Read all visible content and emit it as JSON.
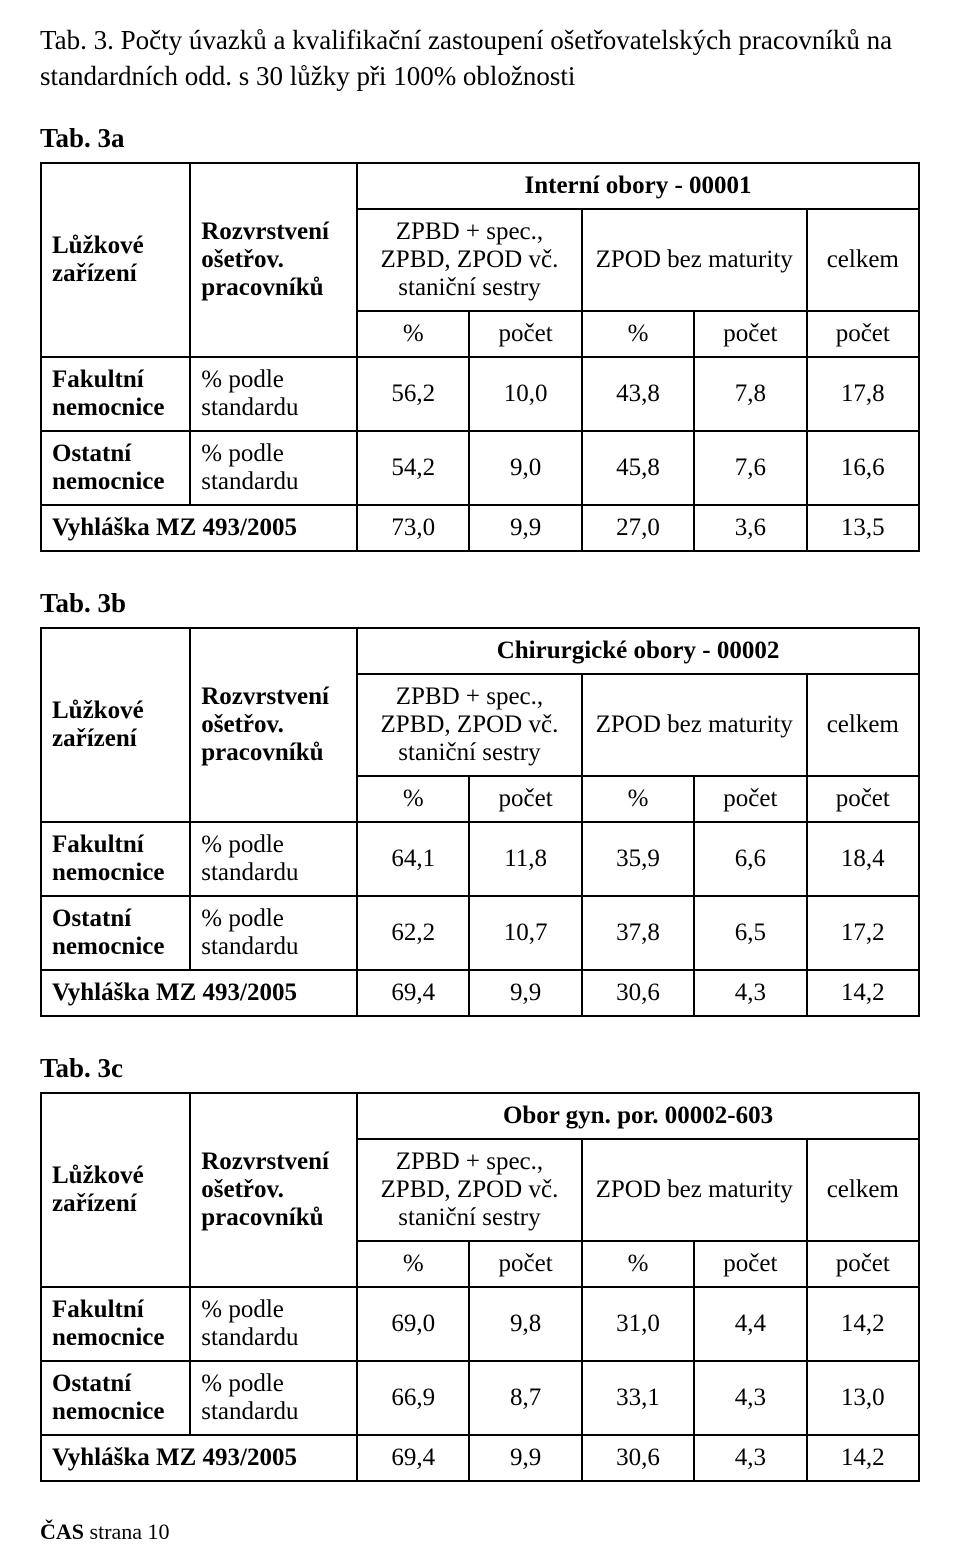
{
  "title": "Tab. 3. Počty úvazků a kvalifikační zastoupení ošetřovatelských pracovníků na standardních odd. s 30 lůžky při 100% obložnosti",
  "footer_bold": "ČAS",
  "footer_rest": " strana 10",
  "common": {
    "luz": "Lůžkové zařízení",
    "rozv": "Rozvrstvení ošetřov. pracovníků",
    "zpbd": "ZPBD + spec., ZPBD, ZPOD vč. staniční sestry",
    "zpod": "ZPOD bez maturity",
    "celkem": "celkem",
    "pct": "%",
    "pocet": "počet",
    "fak": "Fakultní nemocnice",
    "ost": "Ostatní nemocnice",
    "podle": "% podle standardu",
    "vyhl": "Vyhláška MZ 493/2005"
  },
  "tables": [
    {
      "label": "Tab. 3a",
      "obor": "Interní obory - 00001",
      "rows": {
        "fak": [
          "56,2",
          "10,0",
          "43,8",
          "7,8",
          "17,8"
        ],
        "ost": [
          "54,2",
          "9,0",
          "45,8",
          "7,6",
          "16,6"
        ],
        "vyhl": [
          "73,0",
          "9,9",
          "27,0",
          "3,6",
          "13,5"
        ]
      }
    },
    {
      "label": "Tab. 3b",
      "obor": "Chirurgické obory - 00002",
      "rows": {
        "fak": [
          "64,1",
          "11,8",
          "35,9",
          "6,6",
          "18,4"
        ],
        "ost": [
          "62,2",
          "10,7",
          "37,8",
          "6,5",
          "17,2"
        ],
        "vyhl": [
          "69,4",
          "9,9",
          "30,6",
          "4,3",
          "14,2"
        ]
      }
    },
    {
      "label": "Tab. 3c",
      "obor": "Obor gyn. por. 00002-603",
      "rows": {
        "fak": [
          "69,0",
          "9,8",
          "31,0",
          "4,4",
          "14,2"
        ],
        "ost": [
          "66,9",
          "8,7",
          "33,1",
          "4,3",
          "13,0"
        ],
        "vyhl": [
          "69,4",
          "9,9",
          "30,6",
          "4,3",
          "14,2"
        ]
      }
    }
  ]
}
